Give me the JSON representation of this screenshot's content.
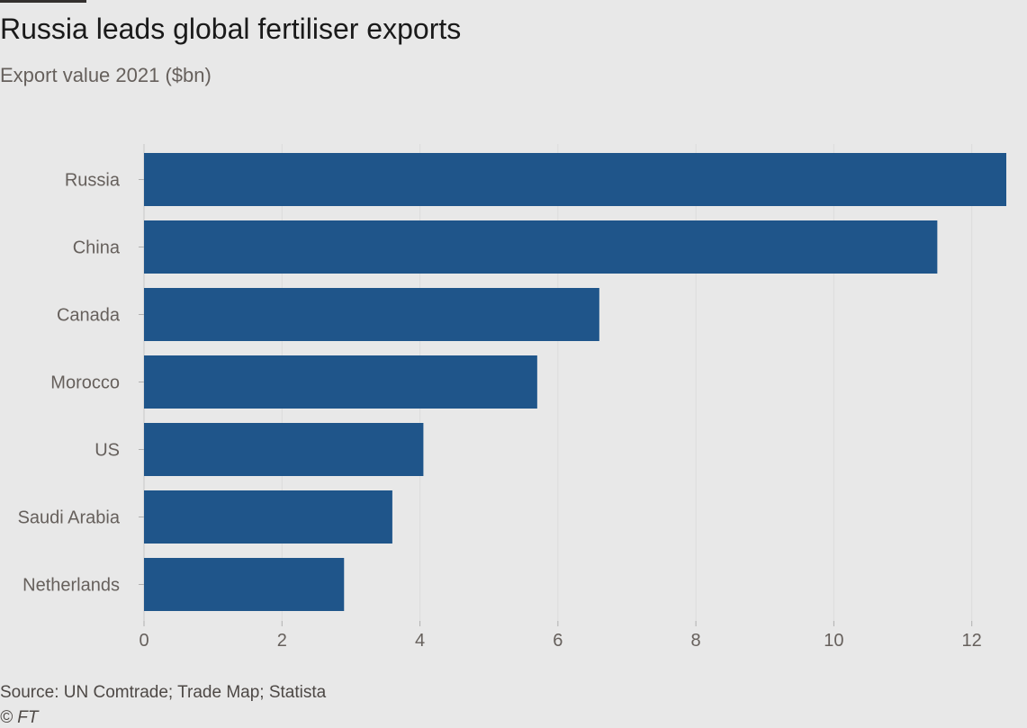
{
  "header": {
    "title": "Russia leads global fertiliser exports",
    "subtitle": "Export value 2021 ($bn)"
  },
  "footer": {
    "source": "Source: UN Comtrade; Trade Map; Statista",
    "credit": "© FT"
  },
  "colors": {
    "bar": "#1f558a",
    "background": "#e8e8e8",
    "grid": "#dcdcdc",
    "text": "#66605c"
  },
  "chart_data": {
    "type": "bar",
    "orientation": "horizontal",
    "title": "Russia leads global fertiliser exports",
    "subtitle": "Export value 2021 ($bn)",
    "categories": [
      "Russia",
      "China",
      "Canada",
      "Morocco",
      "US",
      "Saudi Arabia",
      "Netherlands"
    ],
    "values": [
      12.5,
      11.5,
      6.6,
      5.7,
      4.05,
      3.6,
      2.9
    ],
    "xlim": [
      0,
      12.5
    ],
    "xticks": [
      0,
      2,
      4,
      6,
      8,
      10,
      12
    ],
    "grid": true
  }
}
